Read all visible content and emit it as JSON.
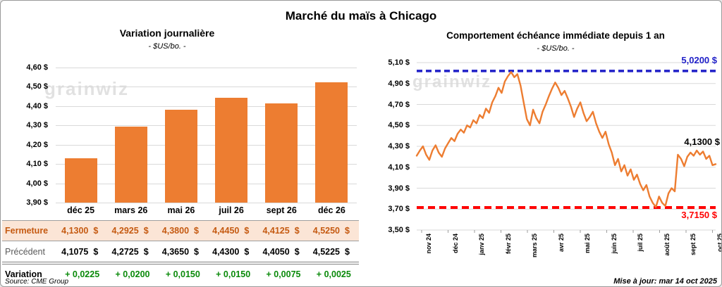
{
  "page": {
    "title": "Marché du maïs à Chicago",
    "watermark": "grainwiz",
    "source": "Source: CME Group",
    "updated": "Mise à jour: mar 14 oct 2025"
  },
  "colors": {
    "bar_orange": "#ED7D31",
    "line_orange": "#ED7D31",
    "resistance_blue": "#2020C8",
    "support_red": "#FF0000",
    "fermeture_bg": "#FBE5D6",
    "fermeture_text": "#C55A11",
    "variation_green": "#0a8a0a",
    "grid_gray": "#d9d9d9"
  },
  "chart_data": [
    {
      "type": "bar",
      "title": "Variation journalière",
      "subtitle": "- $US/bo. -",
      "categories": [
        "déc 25",
        "mars 26",
        "mai 26",
        "juil 26",
        "sept 26",
        "déc 26"
      ],
      "values": [
        4.13,
        4.2925,
        4.38,
        4.445,
        4.4125,
        4.525
      ],
      "y_ticks": [
        "4,60 $",
        "4,50 $",
        "4,40 $",
        "4,30 $",
        "4,20 $",
        "4,10 $",
        "4,00 $",
        "3,90 $"
      ],
      "ylim": [
        3.9,
        4.6
      ],
      "grid": true,
      "legend": "none"
    },
    {
      "type": "line",
      "title": "Comportement échéance immédiate depuis 1 an",
      "subtitle": "- $US/bo. -",
      "x_ticks": [
        "nov 24",
        "déc 24",
        "janv 25",
        "févr 25",
        "mars 25",
        "avr 25",
        "mai 25",
        "juin 25",
        "juil 25",
        "août 25",
        "sept 25",
        "oct 25"
      ],
      "y_ticks": [
        "5,10 $",
        "4,90 $",
        "4,70 $",
        "4,50 $",
        "4,30 $",
        "4,10 $",
        "3,90 $",
        "3,70 $",
        "3,50 $"
      ],
      "ylim": [
        3.5,
        5.1
      ],
      "grid": true,
      "series": [
        {
          "name": "échéance immédiate",
          "values": [
            4.21,
            4.26,
            4.3,
            4.22,
            4.17,
            4.26,
            4.31,
            4.24,
            4.2,
            4.28,
            4.33,
            4.38,
            4.35,
            4.42,
            4.46,
            4.43,
            4.5,
            4.48,
            4.55,
            4.52,
            4.6,
            4.57,
            4.66,
            4.62,
            4.72,
            4.78,
            4.86,
            4.81,
            4.92,
            4.97,
            5.01,
            4.96,
            4.99,
            4.88,
            4.72,
            4.56,
            4.5,
            4.65,
            4.57,
            4.52,
            4.63,
            4.7,
            4.78,
            4.85,
            4.91,
            4.86,
            4.79,
            4.83,
            4.76,
            4.68,
            4.58,
            4.66,
            4.72,
            4.62,
            4.54,
            4.58,
            4.63,
            4.52,
            4.44,
            4.38,
            4.44,
            4.32,
            4.24,
            4.12,
            4.18,
            4.06,
            4.12,
            4.02,
            4.08,
            3.98,
            4.03,
            3.94,
            3.88,
            3.93,
            3.82,
            3.76,
            3.72,
            3.82,
            3.76,
            3.73,
            3.85,
            3.9,
            3.87,
            4.22,
            4.18,
            4.11,
            4.2,
            4.24,
            4.21,
            4.26,
            4.22,
            4.25,
            4.18,
            4.21,
            4.12,
            4.13
          ]
        }
      ],
      "resistance": {
        "value": 5.02,
        "label": "5,0200 $"
      },
      "support": {
        "value": 3.715,
        "label": "3,7150 $"
      },
      "last_point": {
        "value": 4.13,
        "label": "4,1300 $"
      }
    },
    {
      "type": "table",
      "columns": [
        "déc 25",
        "mars 26",
        "mai 26",
        "juil 26",
        "sept 26",
        "déc 26"
      ],
      "rows": [
        {
          "label": "Fermeture",
          "values": [
            "4,1300",
            "4,2925",
            "4,3800",
            "4,4450",
            "4,4125",
            "4,5250"
          ],
          "currency": "$"
        },
        {
          "label": "Précédent",
          "values": [
            "4,1075",
            "4,2725",
            "4,3650",
            "4,4300",
            "4,4050",
            "4,5225"
          ],
          "currency": "$"
        },
        {
          "label": "Variation",
          "values": [
            "+ 0,0225",
            "+ 0,0200",
            "+ 0,0150",
            "+ 0,0150",
            "+ 0,0075",
            "+ 0,0025"
          ],
          "currency": ""
        }
      ]
    }
  ]
}
